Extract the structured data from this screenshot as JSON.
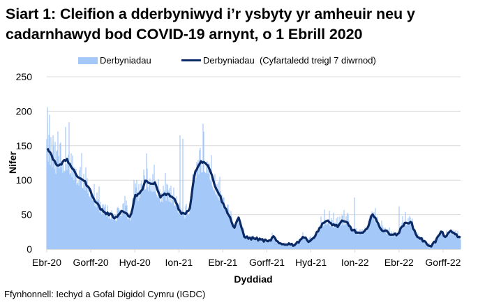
{
  "chart_data": {
    "type": "bar+line",
    "title": "Siart 1: Cleifion a dderbyniwyd i’r ysbyty yr amheuir neu y cadarnhawyd bod COVID-19 arnynt, o 1 Ebrill 2020",
    "title_lines": [
      "Siart 1: Cleifion a dderbyniwyd i’r ysbyty yr amheuir neu y",
      "cadarnhawyd bod COVID-19 arnynt, o 1 Ebrill 2020"
    ],
    "xlabel": "Dyddiad",
    "ylabel": "Nifer",
    "ylim": [
      0,
      250
    ],
    "yticks": [
      0,
      50,
      100,
      150,
      200,
      250
    ],
    "xticks": [
      "Ebr-20",
      "Gorff-20",
      "Hyd-20",
      "Ion-21",
      "Ebr-21",
      "Gorff-21",
      "Hyd-21",
      "Ion-22",
      "Ebr-22",
      "Gorff-22"
    ],
    "grid": true,
    "legend_position": "top",
    "series": [
      {
        "name": "Derbyniadau",
        "kind": "bar",
        "color": "#a4c8f8"
      },
      {
        "name": "Derbyniadau  (Cyfartaledd treigl 7 diwrnod)",
        "kind": "line",
        "color": "#0b2a66"
      }
    ],
    "x_days_step": 14,
    "start_date": "2020-04-01",
    "rolling_avg_biweekly": [
      148,
      135,
      122,
      124,
      130,
      120,
      106,
      103,
      95,
      82,
      68,
      58,
      52,
      50,
      45,
      55,
      53,
      46,
      78,
      80,
      100,
      93,
      96,
      75,
      80,
      78,
      72,
      55,
      50,
      58,
      110,
      125,
      128,
      118,
      95,
      80,
      62,
      50,
      30,
      45,
      20,
      15,
      16,
      14,
      13,
      10,
      18,
      8,
      7,
      8,
      6,
      10,
      18,
      12,
      15,
      25,
      38,
      40,
      36,
      33,
      40,
      38,
      28,
      24,
      22,
      28,
      52,
      40,
      28,
      25,
      22,
      20,
      30,
      40,
      38,
      20,
      15,
      8,
      5,
      12,
      25,
      18,
      25,
      22,
      15
    ],
    "peak_daily_values": {
      "Ebr-20": 206,
      "Ion-21": 165,
      "Ion-22": 75,
      "Ebr-22": 62
    }
  },
  "legend": {
    "bar_label": "Derbyniadau",
    "line_label": "Derbyniadau  (Cyfartaledd treigl 7 diwrnod)"
  },
  "axes": {
    "y_title": "Nifer",
    "x_title": "Dyddiad",
    "y_tick_labels": [
      "250",
      "200",
      "150",
      "100",
      "50",
      "0"
    ],
    "x_tick_labels": [
      "Ebr-20",
      "Gorff-20",
      "Hyd-20",
      "Ion-21",
      "Ebr-21",
      "Gorff-21",
      "Hyd-21",
      "Ion-22",
      "Ebr-22",
      "Gorff-22"
    ]
  },
  "source": "Ffynhonnell: Iechyd a Gofal Digidol Cymru (IGDC)",
  "colors": {
    "bars": "#a4c8f8",
    "line": "#0b2a66",
    "grid": "#d9d9d9"
  }
}
